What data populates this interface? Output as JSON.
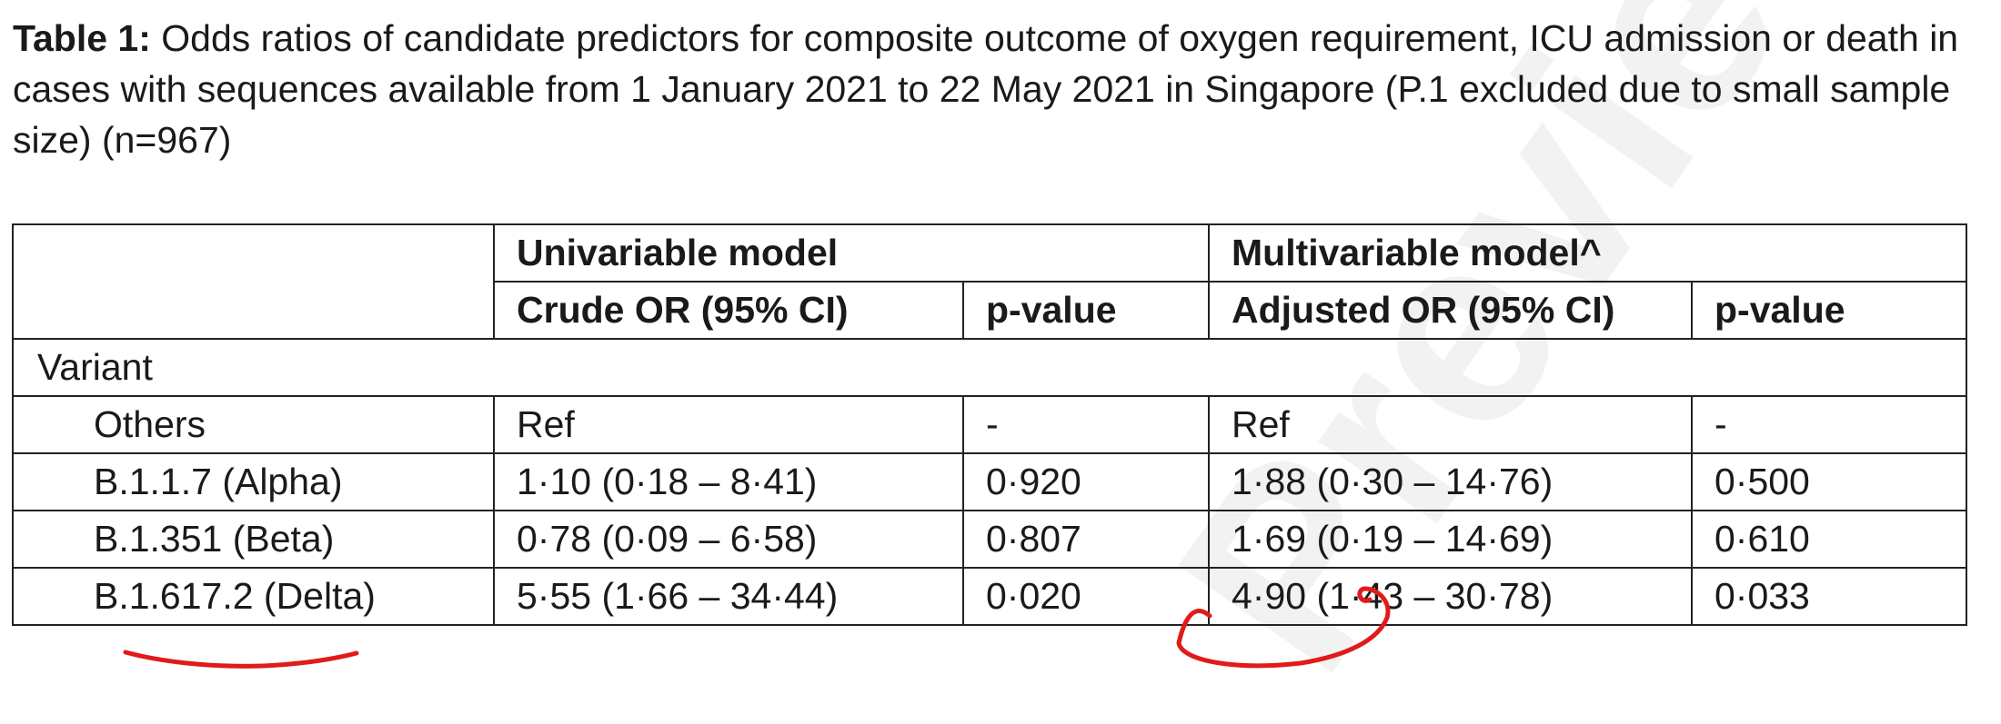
{
  "caption": {
    "label": "Table 1:",
    "text": " Odds ratios of candidate predictors for composite outcome of oxygen requirement, ICU admission or death in cases with sequences available from 1 January 2021 to 22 May 2021 in Singapore (P.1 excluded due to small sample size) (n=967)"
  },
  "watermark": "Preview",
  "header": {
    "univariable": "Univariable model",
    "multivariable": "Multivariable model^",
    "crude_or": "Crude OR (95% CI)",
    "p_value_1": "p-value",
    "adjusted_or": "Adjusted OR (95% CI)",
    "p_value_2": "p-value"
  },
  "section_label": "Variant",
  "rows": [
    {
      "name": "Others",
      "crude": "Ref",
      "p1": "-",
      "adjusted": "Ref",
      "p2": "-"
    },
    {
      "name": "B.1.1.7 (Alpha)",
      "crude": "1·10 (0·18 – 8·41)",
      "p1": "0·920",
      "adjusted": "1·88 (0·30 – 14·76)",
      "p2": "0·500"
    },
    {
      "name": "B.1.351 (Beta)",
      "crude": "0·78 (0·09 – 6·58)",
      "p1": "0·807",
      "adjusted": "1·69 (0·19 – 14·69)",
      "p2": "0·610"
    },
    {
      "name": "B.1.617.2 (Delta)",
      "crude": "5·55 (1·66 – 34·44)",
      "p1": "0·020",
      "adjusted": "4·90 (1·43 – 30·78)",
      "p2": "0·033"
    }
  ],
  "colors": {
    "annotation": "#e11a1a"
  }
}
